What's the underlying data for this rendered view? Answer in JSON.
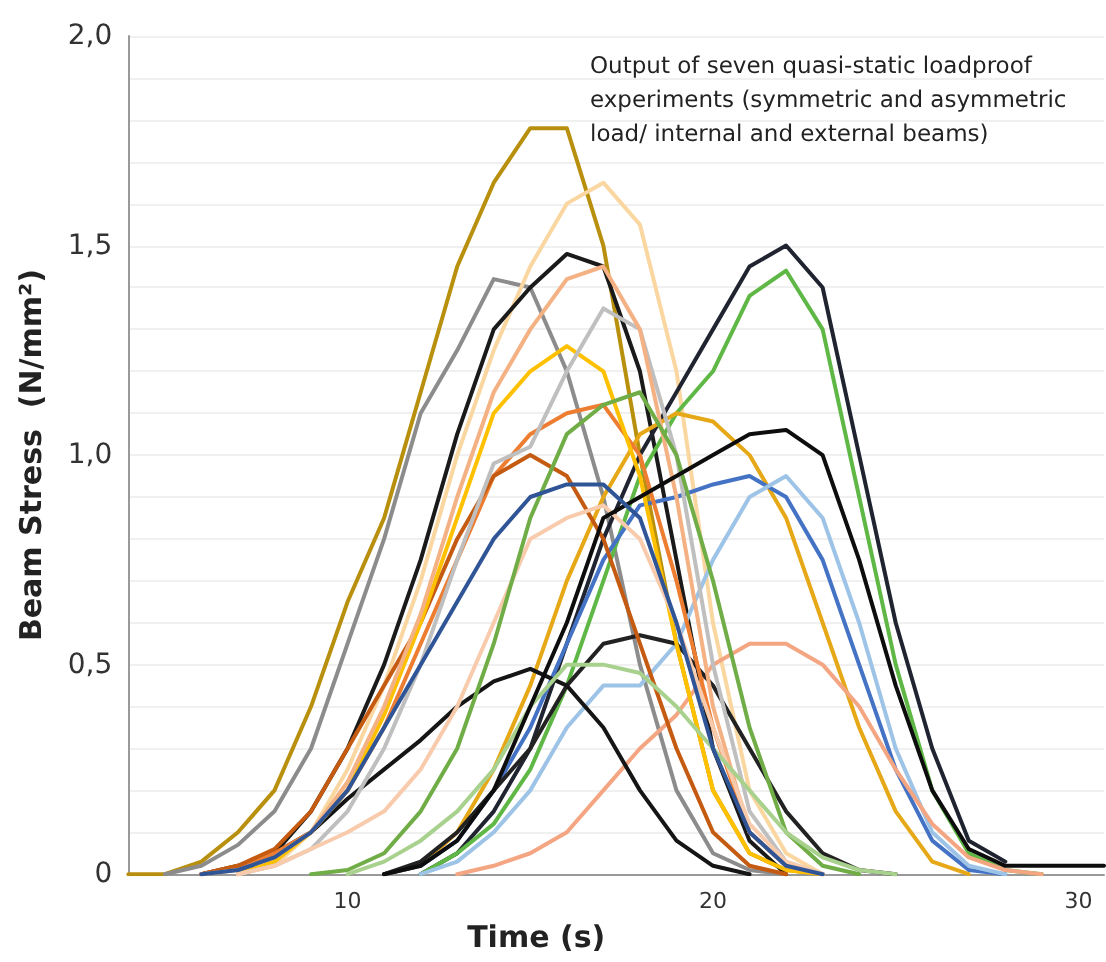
{
  "chart_data": {
    "type": "line",
    "xlabel": "Time (s)",
    "ylabel": "Beam Stress  (N/mm²)",
    "annotations": [
      "Output of seven quasi-static loadproof experiments (symmetric and asymmetric load/ internal and external beams)"
    ],
    "xlim": [
      4,
      30.7
    ],
    "xticks": [
      10,
      20,
      30
    ],
    "ylim": [
      0,
      2
    ],
    "yticks": [
      {
        "value": 0,
        "label": "0"
      },
      {
        "value": 0.1,
        "label": null
      },
      {
        "value": 0.2,
        "label": null
      },
      {
        "value": 0.3,
        "label": null
      },
      {
        "value": 0.4,
        "label": null
      },
      {
        "value": 0.5,
        "label": "0,5"
      },
      {
        "value": 0.6,
        "label": null
      },
      {
        "value": 0.7,
        "label": null
      },
      {
        "value": 0.8,
        "label": null
      },
      {
        "value": 0.9,
        "label": null
      },
      {
        "value": 1.0,
        "label": "1,0"
      },
      {
        "value": 1.1,
        "label": null
      },
      {
        "value": 1.2,
        "label": null
      },
      {
        "value": 1.3,
        "label": null
      },
      {
        "value": 1.4,
        "label": null
      },
      {
        "value": 1.5,
        "label": "1,5"
      },
      {
        "value": 1.6,
        "label": null
      },
      {
        "value": 1.7,
        "label": null
      },
      {
        "value": 1.8,
        "label": null
      },
      {
        "value": 1.9,
        "label": null
      },
      {
        "value": 2.0,
        "label": "2,0"
      }
    ],
    "grid": "y",
    "marker": "none",
    "line_style": "solid",
    "x": [
      4,
      5,
      6,
      7,
      8,
      9,
      10,
      11,
      12,
      13,
      14,
      15,
      16,
      17,
      18,
      19,
      20,
      21,
      22,
      23,
      24,
      25,
      26,
      27,
      28,
      29,
      30,
      30.7
    ],
    "series": [
      {
        "color": "#b8900e",
        "values": [
          0,
          0,
          0.03,
          0.1,
          0.2,
          0.4,
          0.65,
          0.85,
          1.15,
          1.45,
          1.65,
          1.78,
          1.78,
          1.5,
          1.0,
          0.55,
          0.2,
          0.05,
          0.01,
          0,
          null,
          null,
          null,
          null,
          null,
          null,
          null,
          null
        ]
      },
      {
        "color": "#8c8c8c",
        "values": [
          null,
          0,
          0.02,
          0.07,
          0.15,
          0.3,
          0.55,
          0.8,
          1.1,
          1.25,
          1.42,
          1.4,
          1.2,
          0.9,
          0.5,
          0.2,
          0.05,
          0.01,
          0,
          null,
          null,
          null,
          null,
          null,
          null,
          null,
          null,
          null
        ]
      },
      {
        "color": "#fad7a0",
        "values": [
          null,
          null,
          null,
          0,
          0.02,
          0.1,
          0.25,
          0.45,
          0.7,
          1.0,
          1.25,
          1.45,
          1.6,
          1.65,
          1.55,
          1.2,
          0.6,
          0.2,
          0.05,
          0,
          null,
          null,
          null,
          null,
          null,
          null,
          null,
          null
        ]
      },
      {
        "color": "#1a1a1a",
        "values": [
          null,
          null,
          0,
          0.02,
          0.05,
          0.15,
          0.3,
          0.5,
          0.75,
          1.05,
          1.3,
          1.4,
          1.48,
          1.45,
          1.2,
          0.75,
          0.3,
          0.08,
          0,
          null,
          null,
          null,
          null,
          null,
          null,
          null,
          null,
          null
        ]
      },
      {
        "color": "#1f2430",
        "values": [
          null,
          null,
          null,
          null,
          null,
          null,
          null,
          null,
          0,
          0.05,
          0.15,
          0.3,
          0.55,
          0.8,
          1.0,
          1.15,
          1.3,
          1.45,
          1.5,
          1.4,
          1.0,
          0.6,
          0.3,
          0.08,
          0.03,
          null,
          null,
          null
        ]
      },
      {
        "color": "#5fb846",
        "values": [
          null,
          null,
          null,
          null,
          null,
          null,
          null,
          null,
          0,
          0.05,
          0.12,
          0.25,
          0.45,
          0.7,
          0.95,
          1.1,
          1.2,
          1.38,
          1.44,
          1.3,
          0.9,
          0.5,
          0.2,
          0.05,
          0.01,
          0,
          null,
          null
        ]
      },
      {
        "color": "#e6a817",
        "values": [
          null,
          null,
          null,
          null,
          null,
          null,
          null,
          0,
          0.02,
          0.1,
          0.25,
          0.45,
          0.7,
          0.9,
          1.05,
          1.1,
          1.08,
          1.0,
          0.85,
          0.6,
          0.35,
          0.15,
          0.03,
          0,
          null,
          null,
          null,
          null
        ]
      },
      {
        "color": "#4472c4",
        "values": [
          null,
          null,
          null,
          null,
          null,
          null,
          null,
          0,
          0.02,
          0.08,
          0.2,
          0.35,
          0.55,
          0.75,
          0.88,
          0.9,
          0.93,
          0.95,
          0.9,
          0.75,
          0.5,
          0.25,
          0.08,
          0.01,
          0,
          null,
          null,
          null
        ]
      },
      {
        "color": "#9dc3e6",
        "values": [
          null,
          null,
          null,
          null,
          null,
          null,
          null,
          null,
          0,
          0.03,
          0.1,
          0.2,
          0.35,
          0.45,
          0.45,
          0.55,
          0.75,
          0.9,
          0.95,
          0.85,
          0.6,
          0.3,
          0.1,
          0.02,
          0,
          null,
          null,
          null
        ]
      },
      {
        "color": "#f4a582",
        "values": [
          null,
          null,
          null,
          null,
          null,
          null,
          null,
          null,
          null,
          0,
          0.02,
          0.05,
          0.1,
          0.2,
          0.3,
          0.38,
          0.5,
          0.55,
          0.55,
          0.5,
          0.4,
          0.25,
          0.12,
          0.04,
          0.01,
          0,
          null,
          null
        ]
      },
      {
        "color": "#222222",
        "values": [
          null,
          null,
          null,
          null,
          null,
          null,
          null,
          0,
          0.03,
          0.1,
          0.2,
          0.3,
          0.45,
          0.55,
          0.57,
          0.55,
          0.45,
          0.3,
          0.15,
          0.05,
          0.01,
          0,
          null,
          null,
          null,
          null,
          null,
          null
        ]
      },
      {
        "color": "#151515",
        "values": [
          null,
          null,
          null,
          0,
          0.05,
          0.1,
          0.18,
          0.25,
          0.32,
          0.4,
          0.46,
          0.49,
          0.45,
          0.35,
          0.2,
          0.08,
          0.02,
          0,
          null,
          null,
          null,
          null,
          null,
          null,
          null,
          null,
          null,
          null
        ]
      },
      {
        "color": "#ed7d31",
        "values": [
          null,
          null,
          0,
          0.02,
          0.05,
          0.1,
          0.2,
          0.35,
          0.55,
          0.75,
          0.95,
          1.05,
          1.1,
          1.12,
          1.0,
          0.7,
          0.35,
          0.1,
          0.02,
          0,
          null,
          null,
          null,
          null,
          null,
          null,
          null,
          null
        ]
      },
      {
        "color": "#c55a11",
        "values": [
          null,
          null,
          0,
          0.02,
          0.06,
          0.15,
          0.3,
          0.45,
          0.6,
          0.8,
          0.95,
          1.0,
          0.95,
          0.8,
          0.55,
          0.3,
          0.1,
          0.02,
          0,
          null,
          null,
          null,
          null,
          null,
          null,
          null,
          null,
          null
        ]
      },
      {
        "color": "#ffc000",
        "values": [
          null,
          null,
          null,
          0,
          0.03,
          0.1,
          0.2,
          0.38,
          0.6,
          0.85,
          1.1,
          1.2,
          1.26,
          1.2,
          0.95,
          0.55,
          0.2,
          0.05,
          0.01,
          0,
          null,
          null,
          null,
          null,
          null,
          null,
          null,
          null
        ]
      },
      {
        "color": "#bfbfbf",
        "values": [
          null,
          null,
          null,
          0,
          0.02,
          0.06,
          0.15,
          0.3,
          0.5,
          0.75,
          0.98,
          1.02,
          1.2,
          1.35,
          1.3,
          1.0,
          0.5,
          0.15,
          0.03,
          0,
          null,
          null,
          null,
          null,
          null,
          null,
          null,
          null
        ]
      },
      {
        "color": "#f4b183",
        "values": [
          null,
          null,
          0,
          0.01,
          0.04,
          0.1,
          0.22,
          0.4,
          0.62,
          0.9,
          1.15,
          1.3,
          1.42,
          1.45,
          1.3,
          0.9,
          0.4,
          0.1,
          0.02,
          0,
          null,
          null,
          null,
          null,
          null,
          null,
          null,
          null
        ]
      },
      {
        "color": "#f8cbad",
        "values": [
          null,
          null,
          null,
          0,
          0.02,
          0.06,
          0.1,
          0.15,
          0.25,
          0.4,
          0.6,
          0.8,
          0.85,
          0.88,
          0.8,
          0.6,
          0.35,
          0.12,
          0.03,
          0,
          null,
          null,
          null,
          null,
          null,
          null,
          null,
          null
        ]
      },
      {
        "color": "#70ad47",
        "values": [
          null,
          null,
          null,
          null,
          null,
          0,
          0.01,
          0.05,
          0.15,
          0.3,
          0.55,
          0.85,
          1.05,
          1.12,
          1.15,
          1.0,
          0.7,
          0.35,
          0.1,
          0.02,
          0,
          null,
          null,
          null,
          null,
          null,
          null,
          null
        ]
      },
      {
        "color": "#a9d18e",
        "values": [
          null,
          null,
          null,
          null,
          null,
          null,
          0,
          0.03,
          0.08,
          0.15,
          0.25,
          0.4,
          0.5,
          0.5,
          0.48,
          0.4,
          0.3,
          0.2,
          0.1,
          0.04,
          0.01,
          0,
          null,
          null,
          null,
          null,
          null,
          null
        ]
      },
      {
        "color": "#0d0d0d",
        "values": [
          null,
          null,
          null,
          null,
          null,
          null,
          null,
          0,
          0.02,
          0.08,
          0.2,
          0.4,
          0.6,
          0.85,
          0.9,
          0.95,
          1.0,
          1.05,
          1.06,
          1.0,
          0.75,
          0.45,
          0.2,
          0.06,
          0.02,
          0.02,
          0.02,
          0.02
        ]
      },
      {
        "color": "#2f5597",
        "values": [
          null,
          null,
          0,
          0.01,
          0.04,
          0.1,
          0.2,
          0.35,
          0.5,
          0.65,
          0.8,
          0.9,
          0.93,
          0.93,
          0.85,
          0.6,
          0.3,
          0.1,
          0.02,
          0,
          null,
          null,
          null,
          null,
          null,
          null,
          null,
          null
        ]
      }
    ]
  }
}
